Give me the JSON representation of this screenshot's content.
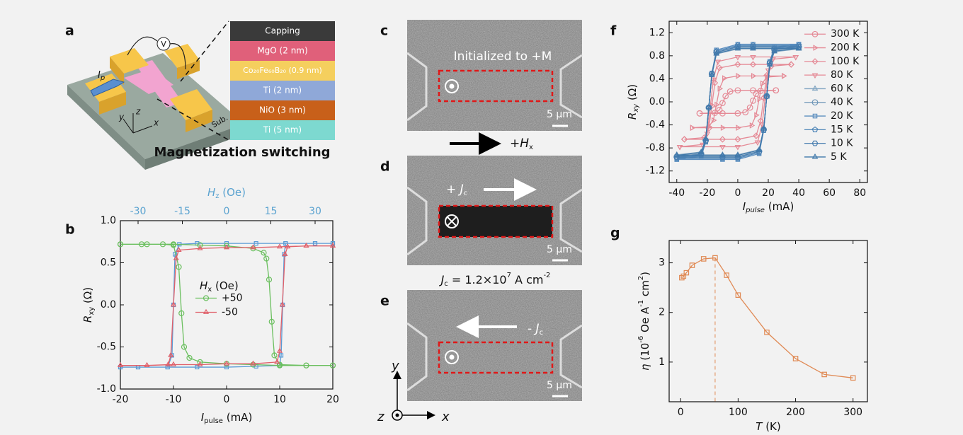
{
  "panels": [
    "a",
    "b",
    "c",
    "d",
    "e",
    "f",
    "g"
  ],
  "panel_a": {
    "voltmeter": "V",
    "current": [
      "I",
      "p"
    ],
    "substrate": "Sub.",
    "axes": [
      "y",
      "z",
      "x"
    ],
    "layers": [
      "Capping",
      "MgO (2 nm)",
      "Co₂₀Fe₆₀B₂₀ (0.9 nm)",
      "Ti (2 nm)",
      "NiO (3 nm)",
      "Ti (5 nm)"
    ],
    "caption": "Magnetization switching"
  },
  "panel_c": {
    "text": "Initialized to +M",
    "scale": "5 μm"
  },
  "field": [
    "+",
    "H",
    "x"
  ],
  "panel_d": {
    "text": [
      "+ ",
      "J",
      "c"
    ],
    "scale": "5 μm"
  },
  "current_density": [
    "J",
    "c",
    " = 1.2×10",
    "7",
    " A cm",
    "-2"
  ],
  "panel_e": {
    "text": [
      "- ",
      "J",
      "c"
    ],
    "scale": "5 μm"
  },
  "frame_axes": [
    "y",
    "z",
    "x"
  ],
  "chart_data": [
    {
      "type": "line",
      "xlabel": [
        "I",
        "pulse",
        " (mA)"
      ],
      "ylabel": [
        "R",
        "xy",
        " (Ω)"
      ],
      "x2label": [
        "H",
        "z",
        " (Oe)"
      ],
      "x2color": "#5ba3d0",
      "legend_title": [
        "H",
        "x",
        " (Oe)"
      ],
      "legend": "center",
      "xlim": [
        -20,
        20
      ],
      "xticks": [
        -20,
        -10,
        0,
        10,
        20
      ],
      "x2lim": [
        -36,
        36
      ],
      "x2ticks": [
        -30,
        -15,
        0,
        15,
        30
      ],
      "ylim": [
        -1,
        1
      ],
      "yticks": [
        {
          "value": -1,
          "label": "-1.0"
        },
        -0.5,
        {
          "value": 0,
          "label": "0.0"
        },
        0.5,
        {
          "value": 1,
          "label": "1.0"
        }
      ],
      "series": [
        {
          "color": "#5b9bd5",
          "marker": "square",
          "axis": "x2",
          "x": [
            -36,
            -30,
            -20,
            -18.5,
            -18,
            -17.5,
            -16,
            -10,
            0,
            10,
            20,
            30,
            36,
            36,
            30,
            20,
            19.5,
            19,
            18.5,
            18,
            10,
            0,
            -10,
            -20,
            -30,
            -36
          ],
          "values": [
            -0.74,
            -0.74,
            -0.74,
            -0.6,
            0,
            0.6,
            0.72,
            0.73,
            0.73,
            0.73,
            0.73,
            0.73,
            0.73,
            0.73,
            0.73,
            0.73,
            0.6,
            0,
            -0.6,
            -0.72,
            -0.73,
            -0.74,
            -0.74,
            -0.74,
            -0.74,
            -0.74
          ]
        },
        {
          "name": "+50",
          "color": "#6abf5e",
          "marker": "circle",
          "x": [
            -20,
            -16,
            -12,
            -10,
            -9,
            -8.5,
            -8,
            -7,
            -5,
            0,
            5,
            10,
            15,
            20,
            20,
            15,
            10,
            9,
            8.5,
            8,
            7.5,
            7,
            5,
            0,
            -5,
            -10,
            -15,
            -20
          ],
          "values": [
            0.72,
            0.72,
            0.72,
            0.71,
            0.45,
            -0.1,
            -0.5,
            -0.63,
            -0.68,
            -0.7,
            -0.71,
            -0.72,
            -0.72,
            -0.72,
            -0.72,
            -0.72,
            -0.71,
            -0.6,
            -0.2,
            0.3,
            0.55,
            0.62,
            0.67,
            0.7,
            0.71,
            0.72,
            0.72,
            0.72
          ]
        },
        {
          "name": "-50",
          "color": "#e0606a",
          "marker": "triangle",
          "x": [
            -20,
            -15,
            -11,
            -10.5,
            -10,
            -9.5,
            -9,
            -5,
            0,
            5,
            10,
            15,
            20,
            20,
            15,
            11.5,
            11,
            10.5,
            10,
            9.5,
            5,
            0,
            -5,
            -10,
            -15,
            -20
          ],
          "values": [
            -0.72,
            -0.72,
            -0.71,
            -0.6,
            0,
            0.55,
            0.65,
            0.67,
            0.68,
            0.68,
            0.69,
            0.7,
            0.7,
            0.7,
            0.7,
            0.69,
            0.6,
            0,
            -0.55,
            -0.68,
            -0.7,
            -0.7,
            -0.71,
            -0.71,
            -0.72,
            -0.72
          ]
        }
      ]
    },
    {
      "type": "line",
      "xlabel": [
        "I",
        "pulse",
        " (mA)"
      ],
      "ylabel": [
        "R",
        "xy",
        " (Ω)"
      ],
      "legend": "upper right",
      "xlim": [
        -45,
        85
      ],
      "xticks": [
        -40,
        -20,
        0,
        20,
        40,
        60,
        80
      ],
      "ylim": [
        -1.4,
        1.4
      ],
      "yticks": [
        -1.2,
        -0.8,
        -0.4,
        {
          "value": 0,
          "label": "0.0"
        },
        0.4,
        0.8,
        1.2
      ],
      "series": [
        {
          "name": "300 K",
          "color": "#e58a96",
          "marker": "circle",
          "x": [
            -25,
            -10,
            0,
            5,
            8,
            10,
            12,
            15,
            25,
            25,
            10,
            0,
            -5,
            -8,
            -10,
            -12,
            -15,
            -25
          ],
          "values": [
            -0.2,
            -0.2,
            -0.2,
            -0.18,
            -0.1,
            0.02,
            0.14,
            0.19,
            0.2,
            0.2,
            0.2,
            0.2,
            0.18,
            0.1,
            -0.02,
            -0.14,
            -0.19,
            -0.2
          ]
        },
        {
          "name": "200 K",
          "color": "#e58a96",
          "marker": "triangle-right",
          "x": [
            -30,
            -10,
            0,
            9,
            12,
            14,
            16,
            19,
            30,
            30,
            10,
            0,
            -9,
            -12,
            -14,
            -16,
            -19,
            -30
          ],
          "values": [
            -0.45,
            -0.45,
            -0.45,
            -0.41,
            -0.23,
            0.05,
            0.32,
            0.43,
            0.45,
            0.45,
            0.45,
            0.45,
            0.41,
            0.23,
            -0.05,
            -0.32,
            -0.43,
            -0.45
          ]
        },
        {
          "name": "100 K",
          "color": "#e58a96",
          "marker": "diamond",
          "x": [
            -35,
            -10,
            0,
            12,
            15,
            17,
            19,
            22,
            35,
            35,
            10,
            0,
            -12,
            -15,
            -17,
            -19,
            -22,
            -35
          ],
          "values": [
            -0.65,
            -0.65,
            -0.65,
            -0.59,
            -0.33,
            0.07,
            0.46,
            0.62,
            0.65,
            0.65,
            0.65,
            0.65,
            0.59,
            0.33,
            -0.07,
            -0.46,
            -0.62,
            -0.65
          ]
        },
        {
          "name": "80 K",
          "color": "#e58a96",
          "marker": "triangle-down",
          "x": [
            -38,
            -10,
            0,
            13,
            16,
            18,
            20,
            23,
            38,
            38,
            10,
            0,
            -13,
            -16,
            -18,
            -20,
            -23,
            -38
          ],
          "values": [
            -0.78,
            -0.78,
            -0.78,
            -0.7,
            -0.39,
            0.08,
            0.55,
            0.74,
            0.78,
            0.78,
            0.78,
            0.78,
            0.7,
            0.39,
            -0.08,
            -0.55,
            -0.74,
            -0.78
          ]
        },
        {
          "name": "60 K",
          "color": "#7fa3c0",
          "marker": "triangle",
          "x": [
            -40,
            -10,
            0,
            14,
            17,
            19,
            21,
            24,
            40,
            40,
            10,
            0,
            -14,
            -17,
            -19,
            -21,
            -24,
            -40
          ],
          "values": [
            -0.92,
            -0.92,
            -0.92,
            -0.83,
            -0.46,
            0.09,
            0.64,
            0.87,
            0.92,
            0.92,
            0.92,
            0.92,
            0.83,
            0.46,
            -0.09,
            -0.64,
            -0.87,
            -0.92
          ]
        },
        {
          "name": "40 K",
          "color": "#6f97b8",
          "marker": "circle",
          "x": [
            -40,
            -10,
            0,
            14,
            17,
            19,
            21,
            24,
            40,
            40,
            10,
            0,
            -14,
            -17,
            -19,
            -21,
            -24,
            -40
          ],
          "values": [
            -0.95,
            -0.95,
            -0.95,
            -0.86,
            -0.48,
            0.1,
            0.67,
            0.9,
            0.95,
            0.95,
            0.95,
            0.95,
            0.86,
            0.48,
            -0.1,
            -0.67,
            -0.9,
            -0.95
          ]
        },
        {
          "name": "20 K",
          "color": "#5d8fc0",
          "marker": "square",
          "x": [
            -40,
            -10,
            0,
            14,
            17,
            19,
            21,
            24,
            40,
            40,
            10,
            0,
            -14,
            -17,
            -19,
            -21,
            -24,
            -40
          ],
          "values": [
            -1,
            -1,
            -1,
            -0.9,
            -0.5,
            0.1,
            0.7,
            0.95,
            1,
            1,
            1,
            1,
            0.9,
            0.5,
            -0.1,
            -0.7,
            -0.95,
            -1
          ]
        },
        {
          "name": "15 K",
          "color": "#4f86b8",
          "marker": "pentagon",
          "x": [
            -40,
            -10,
            0,
            14,
            17,
            19,
            21,
            24,
            40,
            40,
            10,
            0,
            -14,
            -17,
            -19,
            -21,
            -24,
            -40
          ],
          "values": [
            -0.98,
            -0.98,
            -0.98,
            -0.88,
            -0.49,
            0.1,
            0.69,
            0.93,
            0.98,
            0.98,
            0.98,
            0.98,
            0.88,
            0.49,
            -0.1,
            -0.69,
            -0.93,
            -0.98
          ]
        },
        {
          "name": "10 K",
          "color": "#4a7fb0",
          "marker": "hexagon",
          "x": [
            -40,
            -10,
            0,
            14,
            17,
            19,
            21,
            24,
            40,
            40,
            10,
            0,
            -14,
            -17,
            -19,
            -21,
            -24,
            -40
          ],
          "values": [
            -0.96,
            -0.96,
            -0.96,
            -0.86,
            -0.48,
            0.1,
            0.67,
            0.91,
            0.96,
            0.96,
            0.96,
            0.96,
            0.86,
            0.48,
            -0.1,
            -0.67,
            -0.91,
            -0.96
          ]
        },
        {
          "name": "5 K",
          "color": "#3f78aa",
          "marker": "triangle",
          "x": [
            -40,
            -10,
            0,
            14,
            17,
            19,
            21,
            24,
            40,
            40,
            10,
            0,
            -14,
            -17,
            -19,
            -21,
            -24,
            -40
          ],
          "values": [
            -0.93,
            -0.93,
            -0.93,
            -0.84,
            -0.47,
            0.09,
            0.65,
            0.88,
            0.93,
            0.93,
            0.93,
            0.93,
            0.84,
            0.47,
            -0.09,
            -0.65,
            -0.88,
            -0.93
          ]
        }
      ]
    },
    {
      "type": "line",
      "xlabel": [
        "T",
        " (K)"
      ],
      "ylabel": [
        "η",
        " (10",
        "-6",
        " Oe A",
        "-1",
        " cm",
        "2",
        ")"
      ],
      "xlim": [
        -20,
        325
      ],
      "xticks": [
        0,
        100,
        200,
        300
      ],
      "ylim": [
        0.2,
        3.45
      ],
      "yticks": [
        1,
        2,
        3
      ],
      "vline_x": 60,
      "series": [
        {
          "color": "#e08a55",
          "marker": "square",
          "x": [
            2,
            5,
            10,
            20,
            40,
            60,
            80,
            100,
            150,
            200,
            250,
            300
          ],
          "values": [
            2.7,
            2.73,
            2.8,
            2.95,
            3.08,
            3.1,
            2.75,
            2.35,
            1.6,
            1.07,
            0.75,
            0.68
          ]
        }
      ]
    }
  ]
}
